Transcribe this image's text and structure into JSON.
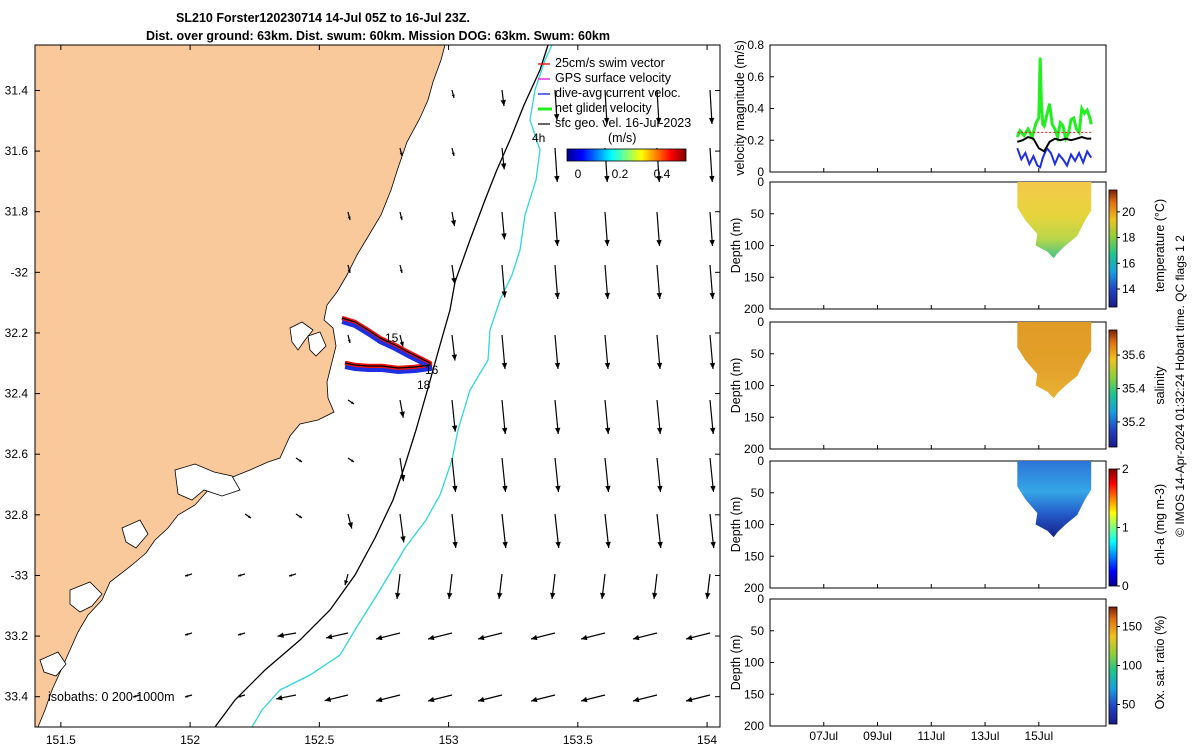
{
  "figure": {
    "title_line1": "SL210 Forster120230714 14-Jul 05Z to 16-Jul 23Z.",
    "title_line2": "Dist. over ground: 63km. Dist. swum: 60km. Mission DOG: 63km. Swum: 60km",
    "credit": "© IMOS 14-Apr-2024 01:32:24 Hobart time. QC flags 1  2",
    "colors": {
      "land": "#f9c89b",
      "isobath_200": "#000000",
      "isobath_1000": "#2ed8d8",
      "track_blue": "#1f2fe0",
      "track_red": "#ef1010",
      "path_black": "#000000"
    }
  },
  "chart_data": [
    {
      "type": "scatter",
      "name": "map",
      "xlim": [
        151.4,
        154.05
      ],
      "ylim": [
        -33.5,
        -31.25
      ],
      "xticks": [
        151.5,
        152,
        152.5,
        153,
        153.5,
        154
      ],
      "xtick_labels": [
        "151.5",
        "152",
        "152.5",
        "153",
        "153.5",
        "154"
      ],
      "yticks": [
        -31.4,
        -31.6,
        -31.8,
        -32,
        -32.2,
        -32.4,
        -32.6,
        -32.8,
        -33,
        -33.2,
        -33.4
      ],
      "ytick_labels": [
        "31.4",
        "31.6",
        "31.8",
        "-32",
        "32.2",
        "32.4",
        "32.6",
        "32.8",
        "-33",
        "33.2",
        "33.4"
      ],
      "isobath_text": "isobaths: 0   200  1000m",
      "legend": [
        "25cm/s swim vector",
        "GPS surface velocity",
        "dive-avg current veloc.",
        "net glider velocity",
        "sfc geo. vel. 16-Jul-2023"
      ],
      "colorbar": {
        "label": "(m/s)",
        "ticks": [
          "0",
          "0.2",
          "0.4"
        ]
      },
      "time_labels": [
        "4h",
        "15",
        "16",
        "18"
      ]
    },
    {
      "type": "line",
      "name": "velocity",
      "ylabel": "velocity magnitude (m/s)",
      "ylim": [
        0,
        0.8
      ],
      "yticks": [
        "0",
        "0.2",
        "0.4",
        "0.6",
        "0.8"
      ],
      "series": [
        {
          "name": "net glider velocity",
          "color": "#22ee22",
          "x": [
            14.2,
            14.3,
            14.45,
            14.6,
            14.75,
            14.9,
            15.0,
            15.05,
            15.1,
            15.15,
            15.2,
            15.3,
            15.4,
            15.5,
            15.6,
            15.7,
            15.8,
            15.9,
            16.0,
            16.1,
            16.2,
            16.3,
            16.4,
            16.5,
            16.6,
            16.7,
            16.8,
            16.9,
            16.95
          ],
          "values": [
            0.22,
            0.26,
            0.23,
            0.27,
            0.22,
            0.31,
            0.34,
            0.72,
            0.42,
            0.3,
            0.29,
            0.36,
            0.43,
            0.3,
            0.27,
            0.22,
            0.31,
            0.29,
            0.21,
            0.24,
            0.33,
            0.34,
            0.27,
            0.25,
            0.4,
            0.37,
            0.39,
            0.34,
            0.3
          ]
        },
        {
          "name": "dive-avg current",
          "color": "#1f2fe0",
          "x": [
            14.2,
            14.35,
            14.5,
            14.65,
            14.8,
            14.95,
            15.05,
            15.15,
            15.3,
            15.45,
            15.6,
            15.75,
            15.9,
            16.05,
            16.2,
            16.35,
            16.5,
            16.65,
            16.8,
            16.95
          ],
          "values": [
            0.15,
            0.08,
            0.12,
            0.05,
            0.1,
            0.04,
            0.03,
            0.09,
            0.15,
            0.12,
            0.05,
            0.11,
            0.08,
            0.04,
            0.11,
            0.07,
            0.12,
            0.06,
            0.13,
            0.09
          ]
        },
        {
          "name": "swim",
          "color": "#000000",
          "x": [
            14.2,
            14.4,
            14.6,
            14.8,
            15.0,
            15.2,
            15.4,
            15.6,
            15.8,
            16.0,
            16.2,
            16.4,
            16.6,
            16.8,
            16.95
          ],
          "values": [
            0.19,
            0.2,
            0.22,
            0.21,
            0.15,
            0.13,
            0.19,
            0.21,
            0.2,
            0.21,
            0.2,
            0.21,
            0.22,
            0.21,
            0.21
          ]
        },
        {
          "name": "reference",
          "color": "#ef1010",
          "x": [
            14.2,
            16.95
          ],
          "values": [
            0.25,
            0.25
          ]
        }
      ]
    },
    {
      "type": "heatmap",
      "name": "temperature",
      "ylabel": "Depth (m)",
      "ylim": [
        200,
        0
      ],
      "yticks": [
        "0",
        "50",
        "100",
        "150",
        "200"
      ],
      "cbar_label": "temperature (°C)",
      "cbar_ticks": [
        "20",
        "18",
        "16",
        "14"
      ],
      "cbar_range": [
        12.6,
        21.7
      ],
      "max_depth": 120
    },
    {
      "type": "heatmap",
      "name": "salinity",
      "ylabel": "Depth (m)",
      "ylim": [
        200,
        0
      ],
      "yticks": [
        "0",
        "50",
        "100",
        "150",
        "200"
      ],
      "cbar_label": "salinity",
      "cbar_ticks": [
        "35.6",
        "35.4",
        "35.2"
      ],
      "cbar_range": [
        35.05,
        35.75
      ],
      "max_depth": 120
    },
    {
      "type": "heatmap",
      "name": "chl-a",
      "ylabel": "Depth (m)",
      "ylim": [
        200,
        0
      ],
      "yticks": [
        "0",
        "50",
        "100",
        "150",
        "200"
      ],
      "cbar_label": "chl-a (mg m-3)",
      "cbar_ticks": [
        "2",
        "1",
        "0"
      ],
      "cbar_range": [
        0,
        2
      ],
      "max_depth": 120
    },
    {
      "type": "heatmap",
      "name": "oxygen",
      "ylabel": "Depth (m)",
      "ylim": [
        200,
        0
      ],
      "yticks": [
        "0",
        "50",
        "100",
        "150",
        "200"
      ],
      "cbar_label": "Ox. sat. ratio (%)",
      "cbar_ticks": [
        "150",
        "100",
        "50"
      ],
      "cbar_range": [
        25,
        175
      ],
      "xlim": [
        5,
        17.5
      ],
      "xticks": [
        7,
        9,
        11,
        13,
        15
      ],
      "xtick_labels": [
        "07Jul",
        "09Jul",
        "11Jul",
        "13Jul",
        "15Jul"
      ]
    }
  ]
}
